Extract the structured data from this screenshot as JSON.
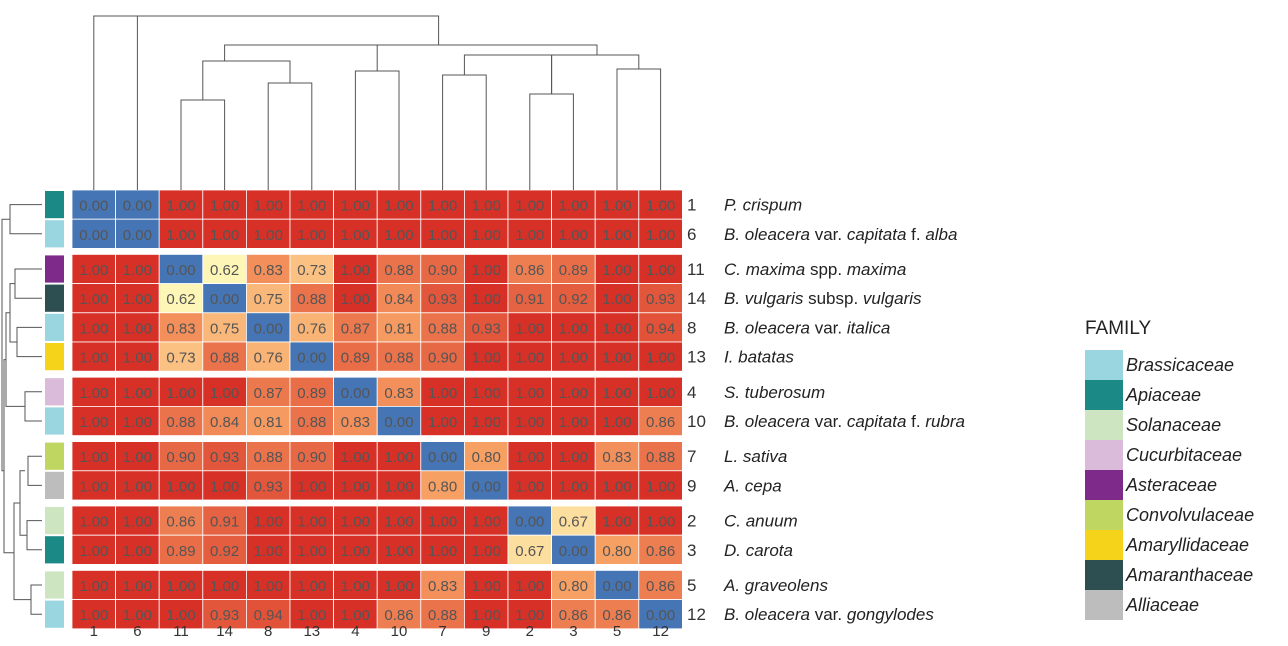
{
  "chart_data": {
    "type": "heatmap",
    "legend_title": "FAMILY",
    "legend_placement": "right",
    "families": [
      {
        "name": "Brassicaceae",
        "color": "#9ad6e0"
      },
      {
        "name": "Apiaceae",
        "color": "#1b8a87"
      },
      {
        "name": "Solanaceae",
        "color": "#cde5c0"
      },
      {
        "name": "Cucurbitaceae",
        "color": "#dabbd9"
      },
      {
        "name": "Asteraceae",
        "color": "#7e2a8a"
      },
      {
        "name": "Convolvulaceae",
        "color": "#bfd661"
      },
      {
        "name": "Amaryllidaceae",
        "color": "#f6d31b"
      },
      {
        "name": "Amaranthaceae",
        "color": "#2e4f52"
      },
      {
        "name": "Alliaceae",
        "color": "#bdbdbd"
      }
    ],
    "row_ids": [
      "1",
      "6",
      "11",
      "14",
      "8",
      "13",
      "4",
      "10",
      "7",
      "9",
      "2",
      "3",
      "5",
      "12"
    ],
    "row_names": [
      [
        "P. crispum"
      ],
      [
        "B. oleacera",
        " var. ",
        "capitata",
        " f. ",
        "alba"
      ],
      [
        "C. maxima",
        " spp. ",
        "maxima"
      ],
      [
        "B. vulgaris",
        " subsp. ",
        "vulgaris"
      ],
      [
        "B. oleacera",
        " var. ",
        "italica"
      ],
      [
        "I. batatas"
      ],
      [
        "S. tuberosum"
      ],
      [
        "B. oleacera",
        " var. ",
        "capitata",
        " f. ",
        "rubra"
      ],
      [
        "L. sativa"
      ],
      [
        "A. cepa"
      ],
      [
        "C. anuum"
      ],
      [
        "D. carota"
      ],
      [
        "A. graveolens"
      ],
      [
        "B. oleacera",
        " var. ",
        "gongylodes"
      ]
    ],
    "row_family": [
      "Apiaceae",
      "Brassicaceae",
      "Asteraceae",
      "Amaranthaceae",
      "Brassicaceae",
      "Amaryllidaceae",
      "Cucurbitaceae",
      "Brassicaceae",
      "Convolvulaceae",
      "Alliaceae",
      "Solanaceae",
      "Apiaceae",
      "Solanaceae",
      "Brassicaceae"
    ],
    "col_ids": [
      "1",
      "6",
      "11",
      "14",
      "8",
      "13",
      "4",
      "10",
      "7",
      "9",
      "2",
      "3",
      "5",
      "12"
    ],
    "values": [
      [
        0.0,
        0.0,
        1.0,
        1.0,
        1.0,
        1.0,
        1.0,
        1.0,
        1.0,
        1.0,
        1.0,
        1.0,
        1.0,
        1.0
      ],
      [
        0.0,
        0.0,
        1.0,
        1.0,
        1.0,
        1.0,
        1.0,
        1.0,
        1.0,
        1.0,
        1.0,
        1.0,
        1.0,
        1.0
      ],
      [
        1.0,
        1.0,
        0.0,
        0.62,
        0.83,
        0.73,
        1.0,
        0.88,
        0.9,
        1.0,
        0.86,
        0.89,
        1.0,
        1.0
      ],
      [
        1.0,
        1.0,
        0.62,
        0.0,
        0.75,
        0.88,
        1.0,
        0.84,
        0.93,
        1.0,
        0.91,
        0.92,
        1.0,
        0.93
      ],
      [
        1.0,
        1.0,
        0.83,
        0.75,
        0.0,
        0.76,
        0.87,
        0.81,
        0.88,
        0.93,
        1.0,
        1.0,
        1.0,
        0.94
      ],
      [
        1.0,
        1.0,
        0.73,
        0.88,
        0.76,
        0.0,
        0.89,
        0.88,
        0.9,
        1.0,
        1.0,
        1.0,
        1.0,
        1.0
      ],
      [
        1.0,
        1.0,
        1.0,
        1.0,
        0.87,
        0.89,
        0.0,
        0.83,
        1.0,
        1.0,
        1.0,
        1.0,
        1.0,
        1.0
      ],
      [
        1.0,
        1.0,
        0.88,
        0.84,
        0.81,
        0.88,
        0.83,
        0.0,
        1.0,
        1.0,
        1.0,
        1.0,
        1.0,
        0.86
      ],
      [
        1.0,
        1.0,
        0.9,
        0.93,
        0.88,
        0.9,
        1.0,
        1.0,
        0.0,
        0.8,
        1.0,
        1.0,
        0.83,
        0.88
      ],
      [
        1.0,
        1.0,
        1.0,
        1.0,
        0.93,
        1.0,
        1.0,
        1.0,
        0.8,
        0.0,
        1.0,
        1.0,
        1.0,
        1.0
      ],
      [
        1.0,
        1.0,
        0.86,
        0.91,
        1.0,
        1.0,
        1.0,
        1.0,
        1.0,
        1.0,
        0.0,
        0.67,
        1.0,
        1.0
      ],
      [
        1.0,
        1.0,
        0.89,
        0.92,
        1.0,
        1.0,
        1.0,
        1.0,
        1.0,
        1.0,
        0.67,
        0.0,
        0.8,
        0.86
      ],
      [
        1.0,
        1.0,
        1.0,
        1.0,
        1.0,
        1.0,
        1.0,
        1.0,
        0.83,
        1.0,
        1.0,
        0.8,
        0.0,
        0.86
      ],
      [
        1.0,
        1.0,
        1.0,
        0.93,
        0.94,
        1.0,
        1.0,
        0.86,
        0.88,
        1.0,
        1.0,
        0.86,
        0.86,
        0.0
      ]
    ],
    "row_groups": [
      2,
      4,
      2,
      2,
      2,
      2
    ],
    "color_scale": {
      "low": "#4575b4",
      "mid": "#ffffbf",
      "high": "#d73027"
    }
  }
}
